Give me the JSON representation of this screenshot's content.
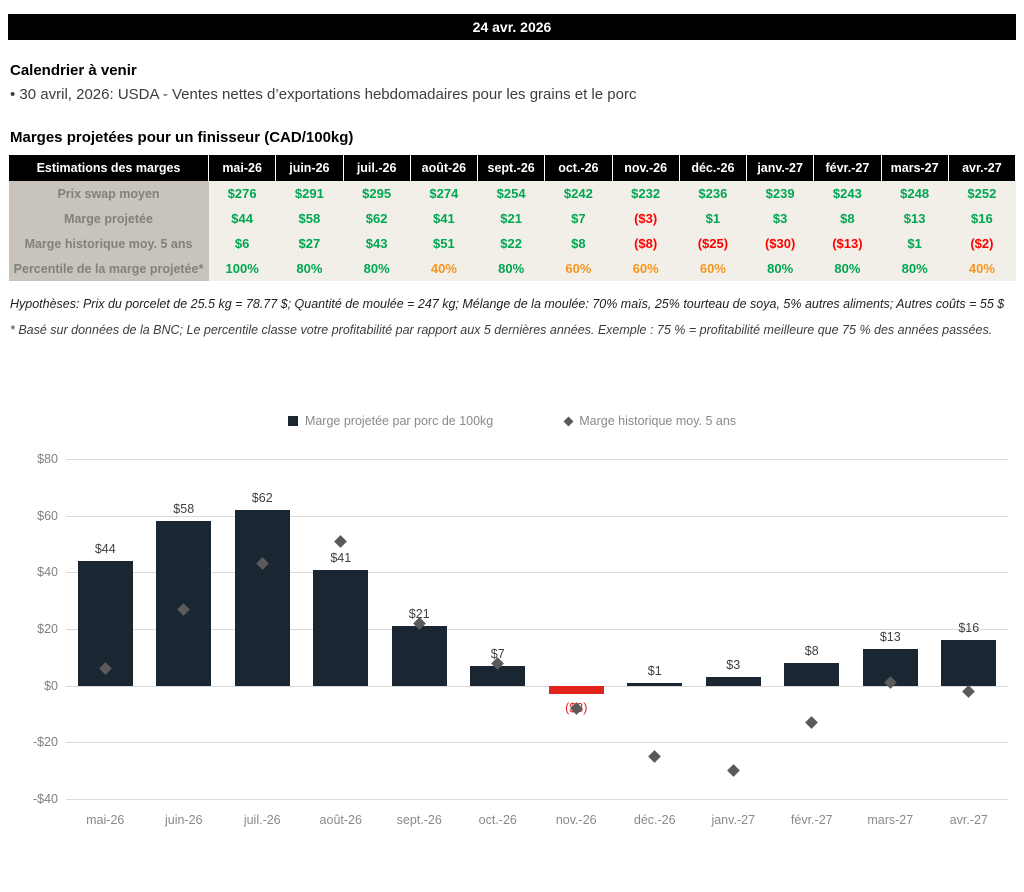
{
  "banner": {
    "date": "24 avr. 2026"
  },
  "calendar": {
    "title": "Calendrier à venir",
    "items": [
      "• 30 avril, 2026: USDA - Ventes nettes d’exportations hebdomadaires pour les grains et le porc"
    ]
  },
  "margins": {
    "title": "Marges projetées pour un finisseur (CAD/100kg)",
    "table": {
      "header": [
        "Estimations des marges",
        "mai-26",
        "juin-26",
        "juil.-26",
        "août-26",
        "sept.-26",
        "oct.-26",
        "nov.-26",
        "déc.-26",
        "janv.-27",
        "févr.-27",
        "mars-27",
        "avr.-27"
      ],
      "rows": [
        {
          "label": "Prix swap moyen",
          "values": [
            "$276",
            "$291",
            "$295",
            "$274",
            "$254",
            "$242",
            "$232",
            "$236",
            "$239",
            "$243",
            "$248",
            "$252"
          ],
          "colors": [
            "g",
            "g",
            "g",
            "g",
            "g",
            "g",
            "g",
            "g",
            "g",
            "g",
            "g",
            "g"
          ]
        },
        {
          "label": "Marge projetée",
          "values": [
            "$44",
            "$58",
            "$62",
            "$41",
            "$21",
            "$7",
            "($3)",
            "$1",
            "$3",
            "$8",
            "$13",
            "$16"
          ],
          "colors": [
            "g",
            "g",
            "g",
            "g",
            "g",
            "g",
            "r",
            "g",
            "g",
            "g",
            "g",
            "g"
          ]
        },
        {
          "label": "Marge historique moy. 5 ans",
          "values": [
            "$6",
            "$27",
            "$43",
            "$51",
            "$22",
            "$8",
            "($8)",
            "($25)",
            "($30)",
            "($13)",
            "$1",
            "($2)"
          ],
          "colors": [
            "g",
            "g",
            "g",
            "g",
            "g",
            "g",
            "r",
            "r",
            "r",
            "r",
            "g",
            "r"
          ]
        },
        {
          "label": "Percentile de la marge projetée*",
          "values": [
            "100%",
            "80%",
            "80%",
            "40%",
            "80%",
            "60%",
            "60%",
            "60%",
            "80%",
            "80%",
            "80%",
            "40%"
          ],
          "colors": [
            "g",
            "g",
            "g",
            "o",
            "g",
            "o",
            "o",
            "o",
            "g",
            "g",
            "g",
            "o"
          ]
        }
      ]
    },
    "footnotes": [
      "Hypothèses: Prix du porcelet de 25.5 kg = 78.77 $; Quantité de moulée = 247 kg; Mélange de la moulée: 70% maïs, 25% tourteau de soya, 5% autres aliments; Autres coûts = 55 $",
      "* Basé sur données de la BNC; Le percentile classe votre profitabilité par rapport aux 5 dernières années. Exemple : 75 % = profitabilité meilleure que 75 % des années passées."
    ]
  },
  "chart_data": {
    "type": "bar",
    "title": "",
    "categories": [
      "mai-26",
      "juin-26",
      "juil.-26",
      "août-26",
      "sept.-26",
      "oct.-26",
      "nov.-26",
      "déc.-26",
      "janv.-27",
      "févr.-27",
      "mars-27",
      "avr.-27"
    ],
    "series": [
      {
        "name": "Marge projetée par porc de 100kg",
        "type": "bar",
        "values": [
          44,
          58,
          62,
          41,
          21,
          7,
          -3,
          1,
          3,
          8,
          13,
          16
        ],
        "labels": [
          "$44",
          "$58",
          "$62",
          "$41",
          "$21",
          "$7",
          "($3)",
          "$1",
          "$3",
          "$8",
          "$13",
          "$16"
        ],
        "color": "#1a2733",
        "negative_color": "#e0231c"
      },
      {
        "name": "Marge historique moy. 5 ans",
        "type": "scatter-diamond",
        "values": [
          6,
          27,
          43,
          51,
          22,
          8,
          -8,
          -25,
          -30,
          -13,
          1,
          -2
        ],
        "color": "#5a5a5a"
      }
    ],
    "ylim": [
      -40,
      80
    ],
    "yticks": [
      80,
      60,
      40,
      20,
      0,
      -20,
      -40
    ],
    "ytick_labels": [
      "$80",
      "$60",
      "$40",
      "$20",
      "$0",
      "-$20",
      "-$40"
    ],
    "grid": true,
    "legend_position": "top"
  }
}
